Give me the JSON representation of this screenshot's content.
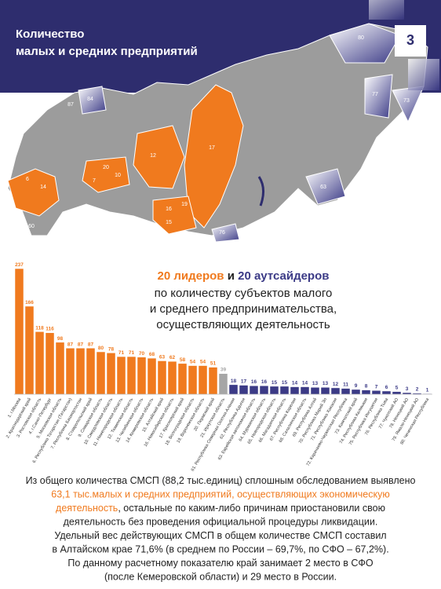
{
  "header": {
    "title_lines": [
      "Количество",
      "малых и средних предприятий"
    ],
    "slide_number": "3"
  },
  "map": {
    "labels": [
      "80",
      "77",
      "73",
      "84",
      "87",
      "12",
      "17",
      "20",
      "10",
      "16",
      "63",
      "7",
      "14",
      "6",
      "19",
      "15",
      "76",
      "60"
    ]
  },
  "chart_data": {
    "type": "bar",
    "title": {
      "leaders": "20 лидеров",
      "and": "и",
      "outsiders": "20 аутсайдеров",
      "lines": [
        "по количеству субъектов малого",
        "и среднего предпринимательства,",
        "осуществляющих деятельность"
      ]
    },
    "categories": [
      "1. г.Москва",
      "2. Краснодарский край",
      "3. Ростовская область",
      "4. г.Санкт-Петербург",
      "5. Московская область",
      "6. Республика Татарстан (Татарстан)",
      "7. Республика Башкортостан",
      "8. Ставропольский край",
      "9. Самарская область",
      "10. Свердловская область",
      "11. Нижегородская область",
      "12. Тюменская область",
      "13. Челябинская область",
      "14. Кемеровская область",
      "15. Алтайский край",
      "16. Новосибирская область",
      "17. Красноярский край",
      "18. Волгоградская область",
      "19. Воронежская область",
      "20. Пермский край",
      "21. Иркутская область",
      "61. Республика Северная Осетия-Алания",
      "62. Республика Адыгея",
      "63. Еврейская автономная область",
      "64. Мурманская область",
      "65. Новгородская область",
      "66. Магаданская область",
      "67. Республика Карелия",
      "68. Сахалинская область",
      "69. Республика Алтай",
      "70. Республика Марий Эл",
      "71. Республика Хакасия",
      "72. Карачаево-Черкесская Республика",
      "73. Камчатский край",
      "74. Республика Калмыкия",
      "75. Республика Ингушетия",
      "76. Республика Тыва",
      "77. Чукотский АО",
      "78. Ненецкий АО",
      "79. Ямало-Ненецкий АО",
      "80. Чеченская Республика"
    ],
    "values": [
      237,
      166,
      118,
      116,
      98,
      87,
      87,
      87,
      80,
      78,
      71,
      71,
      70,
      68,
      63,
      62,
      58,
      54,
      54,
      51,
      39,
      18,
      17,
      16,
      16,
      15,
      15,
      14,
      14,
      13,
      13,
      12,
      11,
      9,
      8,
      7,
      6,
      5,
      3,
      2,
      1
    ],
    "colors": [
      "#f07a1e",
      "#f07a1e",
      "#f07a1e",
      "#f07a1e",
      "#f07a1e",
      "#f07a1e",
      "#f07a1e",
      "#f07a1e",
      "#f07a1e",
      "#f07a1e",
      "#f07a1e",
      "#f07a1e",
      "#f07a1e",
      "#f07a1e",
      "#f07a1e",
      "#f07a1e",
      "#f07a1e",
      "#f07a1e",
      "#f07a1e",
      "#f07a1e",
      "#a6a6a6",
      "#3b3a86",
      "#3b3a86",
      "#3b3a86",
      "#3b3a86",
      "#3b3a86",
      "#3b3a86",
      "#3b3a86",
      "#3b3a86",
      "#3b3a86",
      "#3b3a86",
      "#3b3a86",
      "#3b3a86",
      "#3b3a86",
      "#3b3a86",
      "#3b3a86",
      "#3b3a86",
      "#3b3a86",
      "#3b3a86",
      "#3b3a86",
      "#3b3a86"
    ],
    "ylim": [
      0,
      240
    ]
  },
  "paragraph": [
    [
      {
        "text": "Из общего количества СМСП (88,2 тыс.единиц) сплошным обследованием выявлено",
        "accent": false
      }
    ],
    [
      {
        "text": "63,1 тыс.малых и средних предприятий, осуществляющих экономическую",
        "accent": true
      }
    ],
    [
      {
        "text": "деятельность",
        "accent": true
      },
      {
        "text": ", остальные по каким-либо причинам приостановили свою",
        "accent": false
      }
    ],
    [
      {
        "text": "деятельность без проведения официальной процедуры ликвидации.",
        "accent": false
      }
    ],
    [
      {
        "text": "Удельный вес действующих СМСП в общем количестве СМСП составил",
        "accent": false
      }
    ],
    [
      {
        "text": "в Алтайском крае 71,6% (в среднем по России – 69,7%, по СФО – 67,2%).",
        "accent": false
      }
    ],
    [
      {
        "text": "По данному расчетному показателю край занимает 2 место в СФО",
        "accent": false
      }
    ],
    [
      {
        "text": "(после Кемеровской области) и 29 место в России.",
        "accent": false
      }
    ]
  ]
}
